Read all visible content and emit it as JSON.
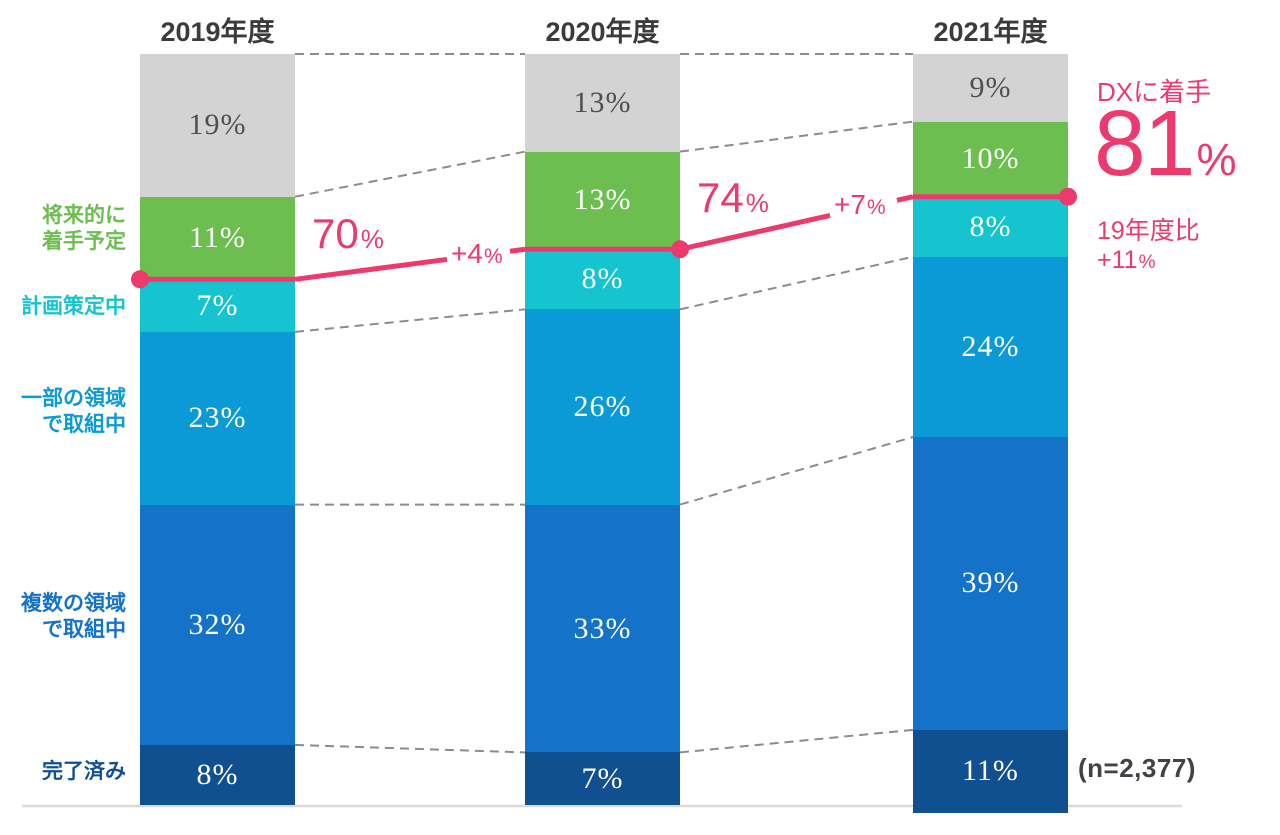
{
  "chart_data": {
    "type": "bar",
    "stacked": true,
    "unit": "%",
    "categories": [
      "2019年度",
      "2020年度",
      "2021年度"
    ],
    "series": [
      {
        "label": "",
        "color": "#d3d3d3",
        "value_text_color": "#4f4f4f",
        "values": [
          19,
          13,
          9
        ]
      },
      {
        "label": "将来的に\n着手予定",
        "color": "#6cbe50",
        "value_text_color": "#ffffff",
        "values": [
          11,
          13,
          10
        ]
      },
      {
        "label": "計画策定中",
        "color": "#16c4cf",
        "value_text_color": "#ffffff",
        "values": [
          7,
          8,
          8
        ]
      },
      {
        "label": "一部の領域\nで取組中",
        "color": "#0c9ad7",
        "value_text_color": "#ffffff",
        "values": [
          23,
          26,
          24
        ]
      },
      {
        "label": "複数の領域\nで取組中",
        "color": "#1472c9",
        "value_text_color": "#ffffff",
        "values": [
          32,
          33,
          39
        ]
      },
      {
        "label": "完了済み",
        "color": "#115090",
        "value_text_color": "#ffffff",
        "values": [
          8,
          7,
          11
        ]
      }
    ],
    "trend_line": {
      "color": "#ed3a6e",
      "values": [
        70,
        74,
        81
      ],
      "value_labels": [
        {
          "num": "70",
          "pct": "%"
        },
        {
          "num": "74",
          "pct": "%"
        }
      ],
      "delta_labels": [
        {
          "num": "+4",
          "pct": "%"
        },
        {
          "num": "+7",
          "pct": "%"
        }
      ],
      "callout": {
        "title": "DXに着手",
        "num": "81",
        "pct": "%",
        "note_line1": "19年度比",
        "note_num": "+11",
        "note_pct": "%"
      }
    },
    "sample_size_label": "(n=2,377)",
    "grid": "dashed-connectors",
    "legend_position": "left",
    "ylim": [
      0,
      100
    ]
  },
  "style_colors": {
    "accent_pink": "#ed3a6e",
    "dashed_connector": "#8c8c8c",
    "axis_baseline": "#d9d9d9",
    "header_text": "#3b3b3b",
    "gray_value_text": "#4f4f4f"
  }
}
